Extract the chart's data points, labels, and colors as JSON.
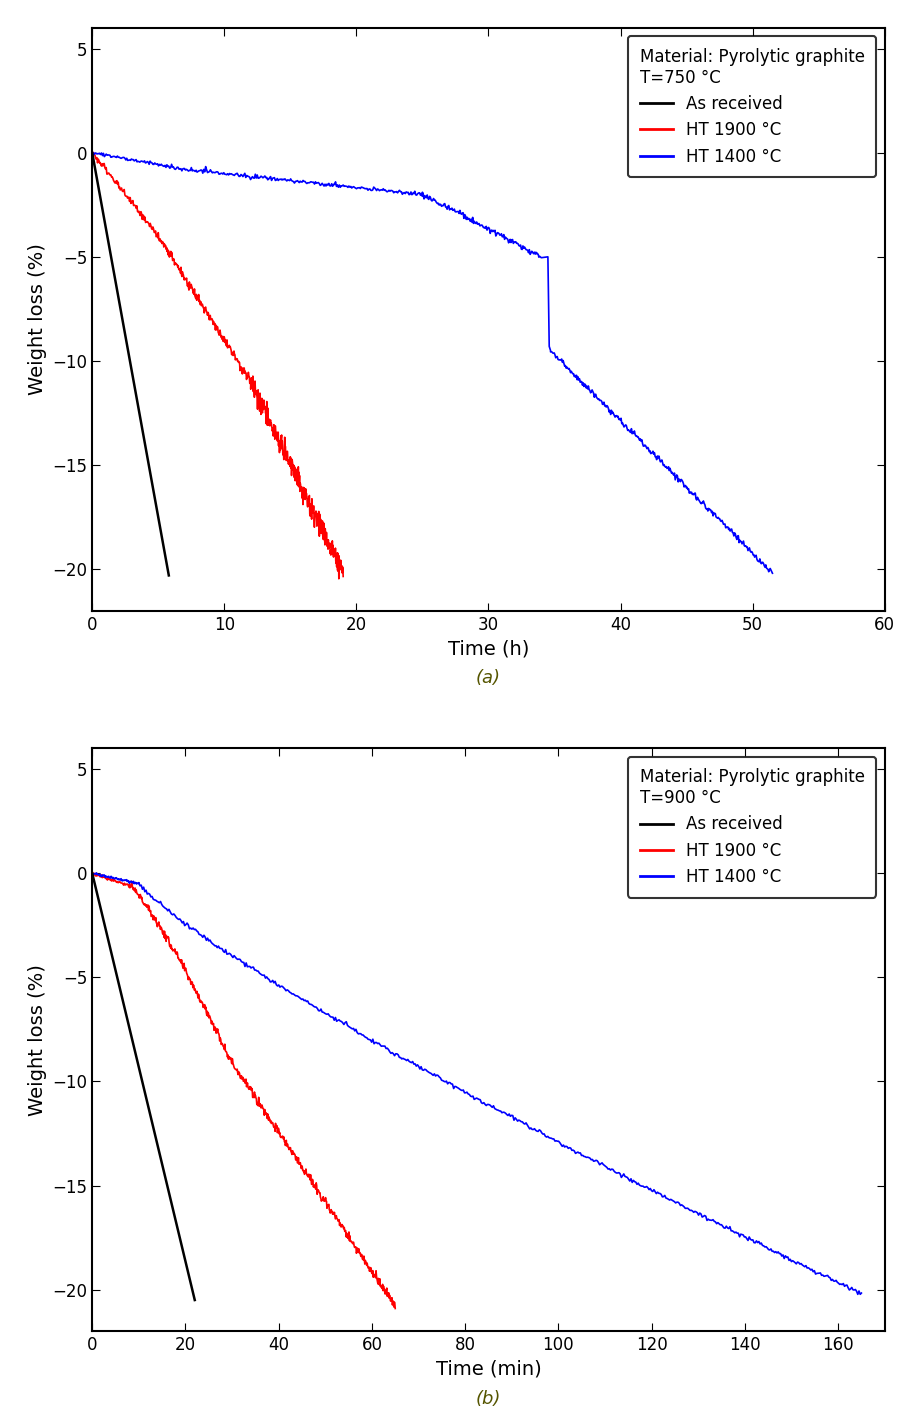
{
  "plot_a": {
    "title_line1": "Material: Pyrolytic graphite",
    "title_line2": "T=750 °C",
    "xlabel": "Time (h)",
    "ylabel": "Weight loss (%)",
    "xlim": [
      0,
      60
    ],
    "ylim": [
      -22,
      6
    ],
    "xticks": [
      0,
      10,
      20,
      30,
      40,
      50,
      60
    ],
    "yticks": [
      5,
      0,
      -5,
      -10,
      -15,
      -20
    ],
    "legend_entries": [
      "As received",
      "HT 1900 °C",
      "HT 1400 °C"
    ],
    "legend_colors": [
      "#000000",
      "#ff0000",
      "#0000ff"
    ],
    "sub_label": "(a)"
  },
  "plot_b": {
    "title_line1": "Material: Pyrolytic graphite",
    "title_line2": "T=900 °C",
    "xlabel": "Time (min)",
    "ylabel": "Weight loss (%)",
    "xlim": [
      0,
      170
    ],
    "ylim": [
      -22,
      6
    ],
    "xticks": [
      0,
      20,
      40,
      60,
      80,
      100,
      120,
      140,
      160
    ],
    "yticks": [
      5,
      0,
      -5,
      -10,
      -15,
      -20
    ],
    "legend_entries": [
      "As received",
      "HT 1900 °C",
      "HT 1400 °C"
    ],
    "legend_colors": [
      "#000000",
      "#ff0000",
      "#0000ff"
    ],
    "sub_label": "(b)"
  }
}
